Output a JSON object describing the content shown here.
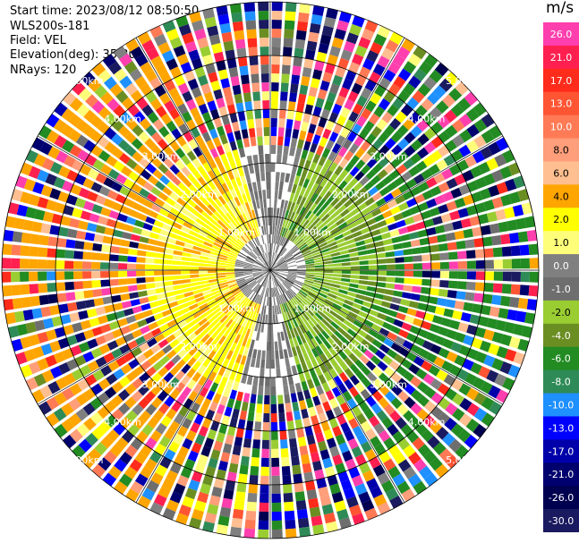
{
  "header": {
    "start_time": "Start time: 2023/08/12 08:50:50",
    "instrument": "WLS200s-181",
    "field": "Field: VEL",
    "elevation": "Elevation(deg): 35.30",
    "nrays": "NRays: 120"
  },
  "colorbar": {
    "unit": "m/s",
    "ticks": [
      "26.0",
      "21.0",
      "17.0",
      "13.0",
      "10.0",
      "8.0",
      "6.0",
      "4.0",
      "2.0",
      "1.0",
      "0.0",
      "-1.0",
      "-2.0",
      "-4.0",
      "-6.0",
      "-8.0",
      "-10.0",
      "-13.0",
      "-17.0",
      "-21.0",
      "-26.0",
      "-30.0"
    ],
    "colors": [
      "#ff3fae",
      "#ff2050",
      "#ff2b1b",
      "#ff5533",
      "#ff7a55",
      "#ff9e7a",
      "#ffbf90",
      "#ffa500",
      "#ffff00",
      "#fffe7a",
      "#808080",
      "#6e6e6e",
      "#9acd32",
      "#6b8e23",
      "#228b22",
      "#2e8b57",
      "#1e90ff",
      "#0000ff",
      "#0000aa",
      "#00006e",
      "#000050",
      "#1a1a60"
    ]
  },
  "chart_data": {
    "type": "ppi",
    "field": "VEL",
    "units": "m/s",
    "nrays": 120,
    "elevation_deg": 35.3,
    "range_rings_km": [
      1.0,
      2.0,
      3.0,
      4.0,
      5.0
    ],
    "ring_labels": [
      "1.00km",
      "2.00km",
      "3.00km",
      "4.00km",
      "5.00km"
    ],
    "grid": true,
    "colorbar_range": [
      -30.0,
      26.0
    ]
  }
}
